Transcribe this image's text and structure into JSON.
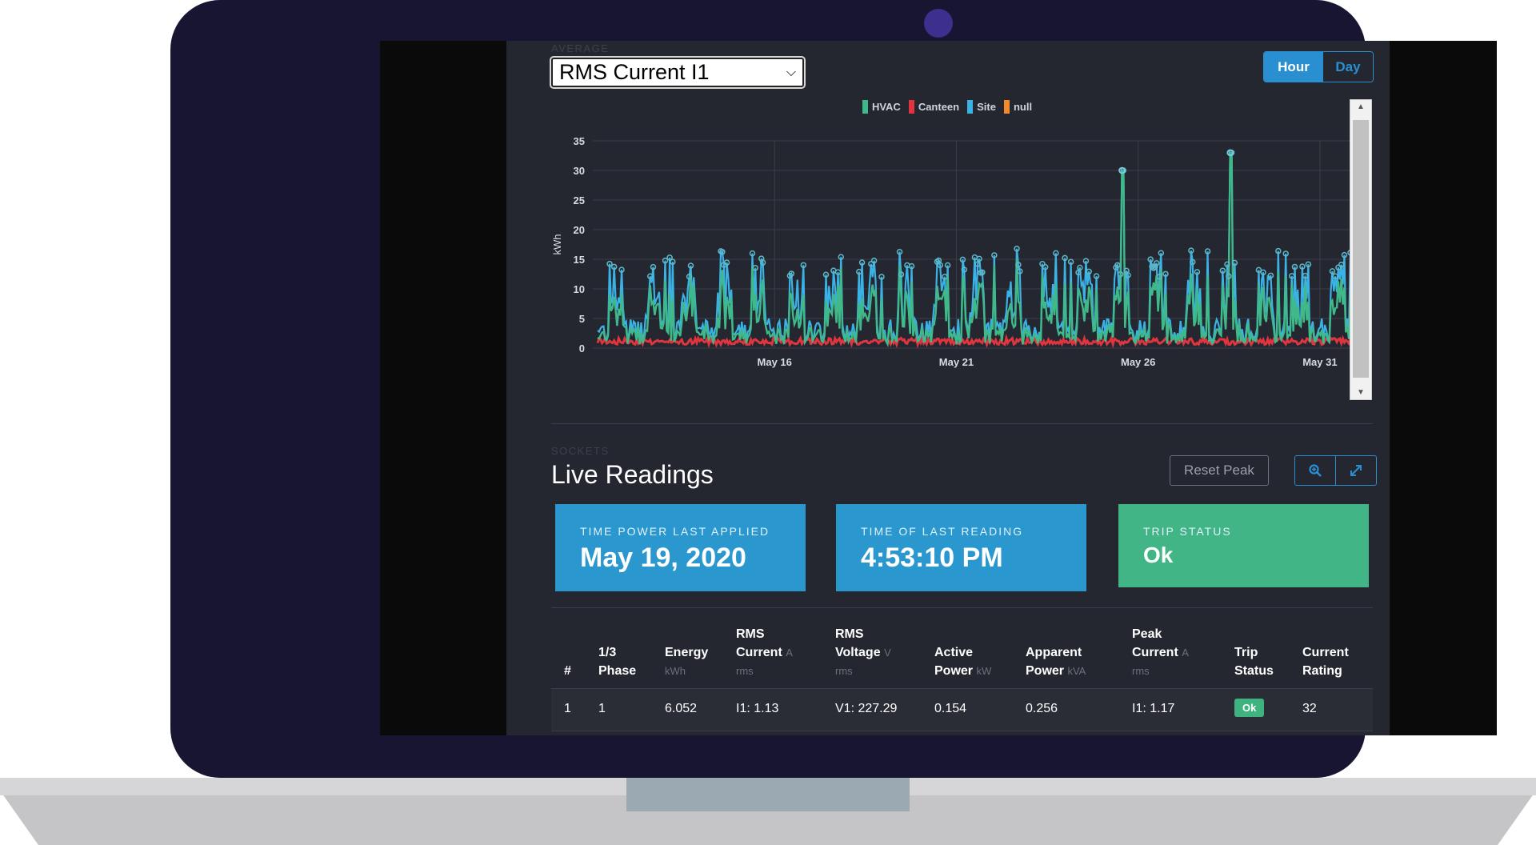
{
  "colors": {
    "hvac": "#3fb98a",
    "canteen": "#e0343f",
    "site": "#3ab2e6",
    "null": "#f08a2a",
    "accent": "#2a8fd1",
    "trip_ok": "#42b587"
  },
  "average": {
    "section_label": "AVERAGE",
    "metric_select": {
      "value": "RMS Current I1"
    },
    "range_toggle": {
      "hour_label": "Hour",
      "day_label": "Day",
      "active": "Hour"
    }
  },
  "chart_data": {
    "type": "line",
    "ylabel": "kWh",
    "ylim": [
      0,
      35
    ],
    "yticks": [
      "0",
      "5",
      "10",
      "15",
      "20",
      "25",
      "30",
      "35"
    ],
    "xticks": [
      "May 16",
      "May 21",
      "May 26",
      "May 31"
    ],
    "x_range": [
      "May 11",
      "May 1 (Jun)"
    ],
    "legend_position": "top-center",
    "grid": true,
    "legend": [
      "HVAC",
      "Canteen",
      "Site",
      "null"
    ],
    "series": [
      {
        "name": "HVAC",
        "peaks": [
          {
            "x": "May 26",
            "value": 30
          },
          {
            "x": "May 29",
            "value": 33
          }
        ],
        "typical_range": [
          1,
          12
        ]
      },
      {
        "name": "Canteen",
        "typical_range": [
          0.5,
          2
        ]
      },
      {
        "name": "Site",
        "typical_range": [
          1,
          17
        ]
      },
      {
        "name": "null",
        "typical_range": []
      }
    ]
  },
  "sockets": {
    "section_label": "SOCKETS",
    "title": "Live Readings",
    "reset_peak_label": "Reset Peak",
    "zoom_icon": "search-plus-icon",
    "expand_icon": "expand-icon"
  },
  "cards": {
    "power_applied": {
      "label": "TIME POWER LAST APPLIED",
      "value": "May 19, 2020"
    },
    "last_reading": {
      "label": "TIME OF LAST READING",
      "value": "4:53:10 PM"
    },
    "trip_status": {
      "label": "TRIP STATUS",
      "value": "Ok"
    }
  },
  "table": {
    "headers": {
      "num": "#",
      "phase": [
        "1/3",
        "Phase"
      ],
      "energy": {
        "label": "Energy",
        "unit": "kWh"
      },
      "rms_current": {
        "label": [
          "RMS",
          "Current"
        ],
        "unit_a": "A",
        "unit_b": "rms"
      },
      "rms_voltage": {
        "label": [
          "RMS",
          "Voltage"
        ],
        "unit_a": "V",
        "unit_b": "rms"
      },
      "active_power": {
        "label": [
          "Active",
          "Power"
        ],
        "unit": "kW"
      },
      "apparent_power": {
        "label": [
          "Apparent",
          "Power"
        ],
        "unit": "kVA"
      },
      "peak_current": {
        "label": [
          "Peak",
          "Current"
        ],
        "unit_a": "A",
        "unit_b": "rms"
      },
      "trip_status": [
        "Trip",
        "Status"
      ],
      "current_rating": [
        "Current",
        "Rating"
      ]
    },
    "rows": [
      {
        "num": "1",
        "phase": "1",
        "energy": "6.052",
        "rms_current": "I1: 1.13",
        "rms_voltage": "V1: 227.29",
        "active_power": "0.154",
        "apparent_power": "0.256",
        "peak_current": "I1: 1.17",
        "trip_status": "Ok",
        "current_rating": "32"
      }
    ]
  }
}
